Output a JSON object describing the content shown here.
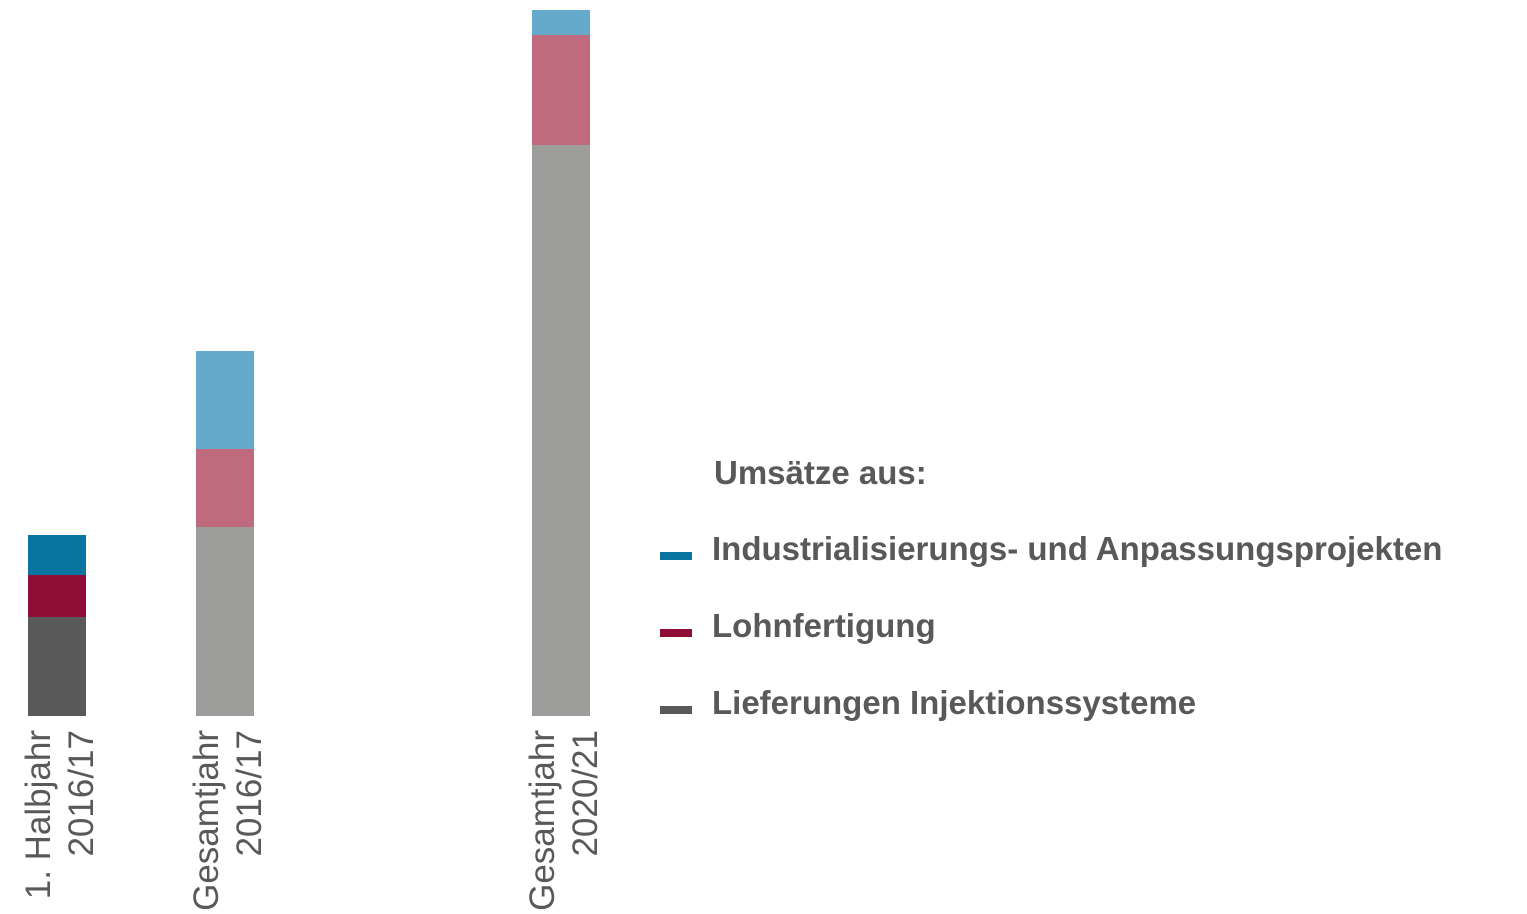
{
  "chart_data": {
    "type": "stacked-bar",
    "categories": [
      [
        "1. Halbjahr",
        "2016/17"
      ],
      [
        "Gesamtjahr",
        "2016/17"
      ],
      null,
      [
        "Gesamtjahr",
        "2020/21"
      ]
    ],
    "ylim": [
      0,
      706
    ],
    "legend_title": "Umsätze aus:",
    "legend": "right",
    "series": [
      {
        "name": "Lieferungen Injektionssysteme",
        "color": "#595959",
        "colors": [
          "#595959",
          "#9d9d9c",
          null,
          "#9d9d9c"
        ],
        "values": [
          99,
          189,
          null,
          571
        ]
      },
      {
        "name": "Lohnfertigung",
        "color": "#8e0e35",
        "colors": [
          "#8e0e35",
          "#c06a7e",
          null,
          "#c06a7e"
        ],
        "values": [
          42,
          78,
          null,
          110
        ]
      },
      {
        "name": "Industrialisierungs- und Anpassungsprojekten",
        "color": "#0a74a0",
        "colors": [
          "#0a74a0",
          "#66aacb",
          null,
          "#66aacb"
        ],
        "values": [
          40,
          98,
          null,
          25
        ]
      }
    ]
  }
}
